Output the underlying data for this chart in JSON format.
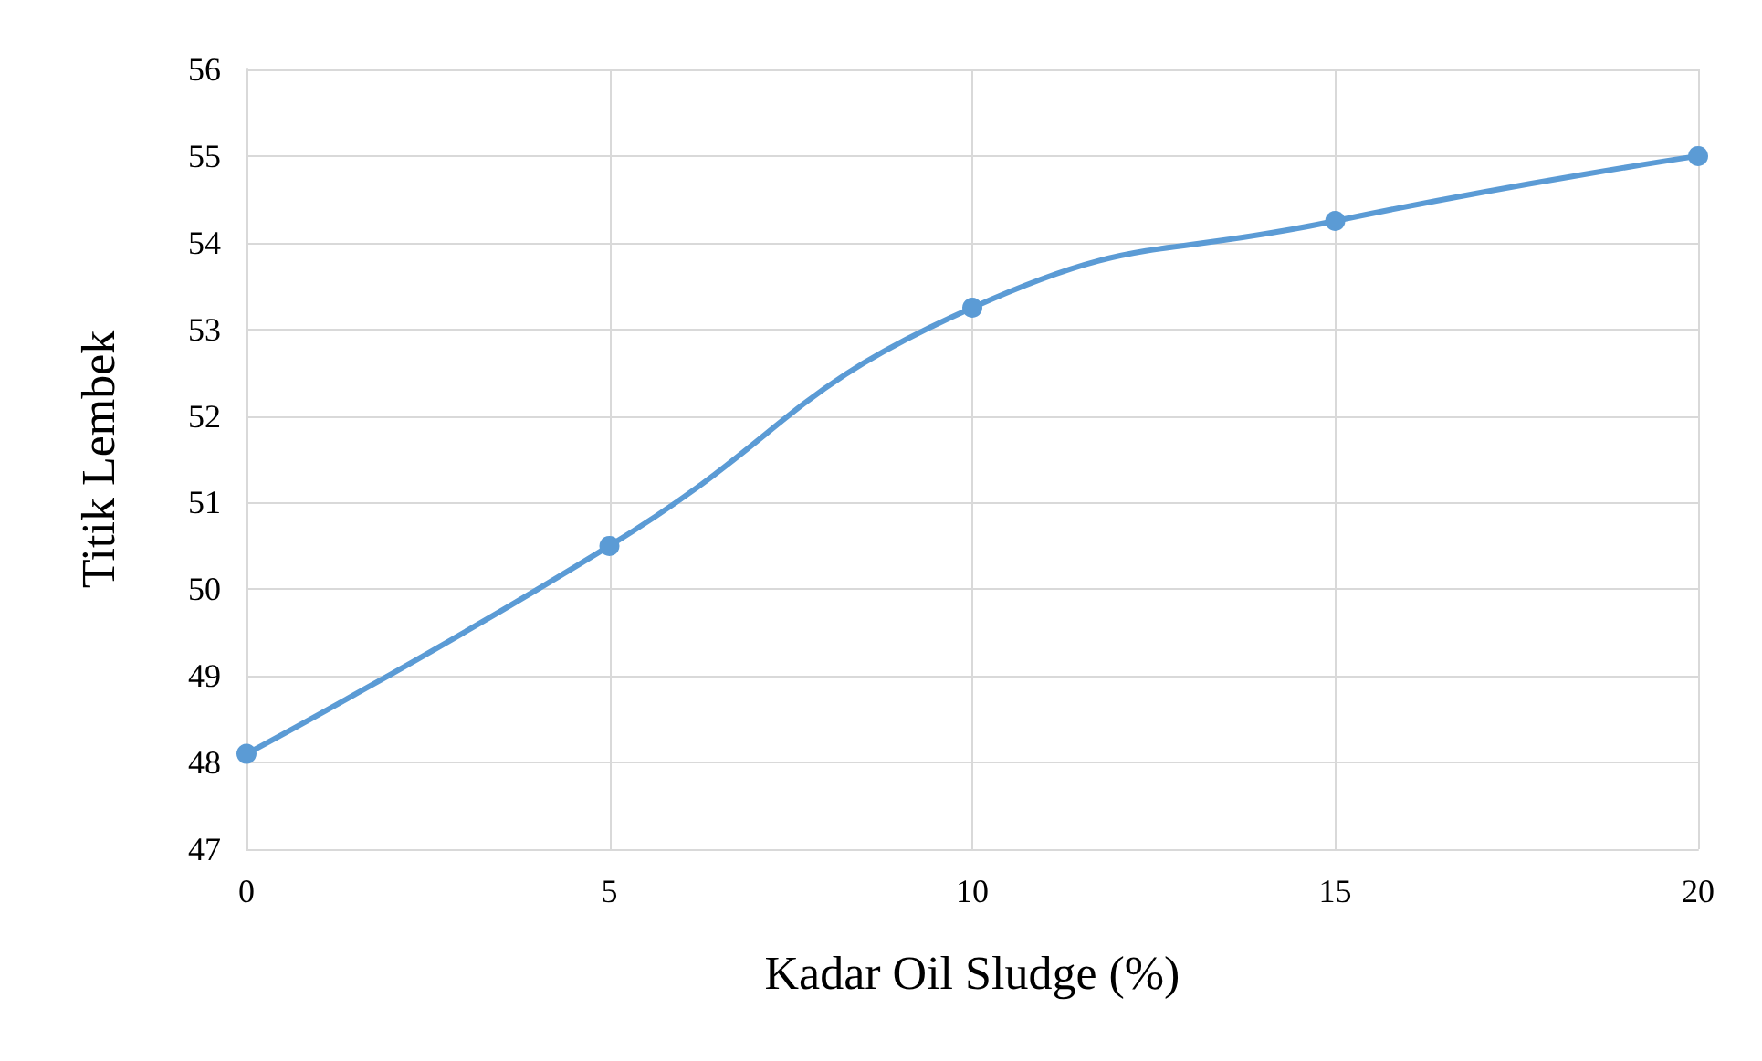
{
  "chart_data": {
    "type": "line",
    "xlabel": "Kadar Oil Sludge (%)",
    "ylabel": "Titik Lembek",
    "x": [
      0,
      5,
      10,
      15,
      20
    ],
    "series": [
      {
        "color": "#5b9bd5",
        "values": [
          48.1,
          50.5,
          53.25,
          54.25,
          55.0
        ]
      }
    ],
    "xlim": [
      0,
      20
    ],
    "xticks": [
      0,
      5,
      10,
      15,
      20
    ],
    "ylim": [
      47,
      56
    ],
    "yticks": [
      47,
      48,
      49,
      50,
      51,
      52,
      53,
      54,
      55,
      56
    ],
    "grid": true,
    "marker": "circle",
    "line_style": "solid"
  }
}
